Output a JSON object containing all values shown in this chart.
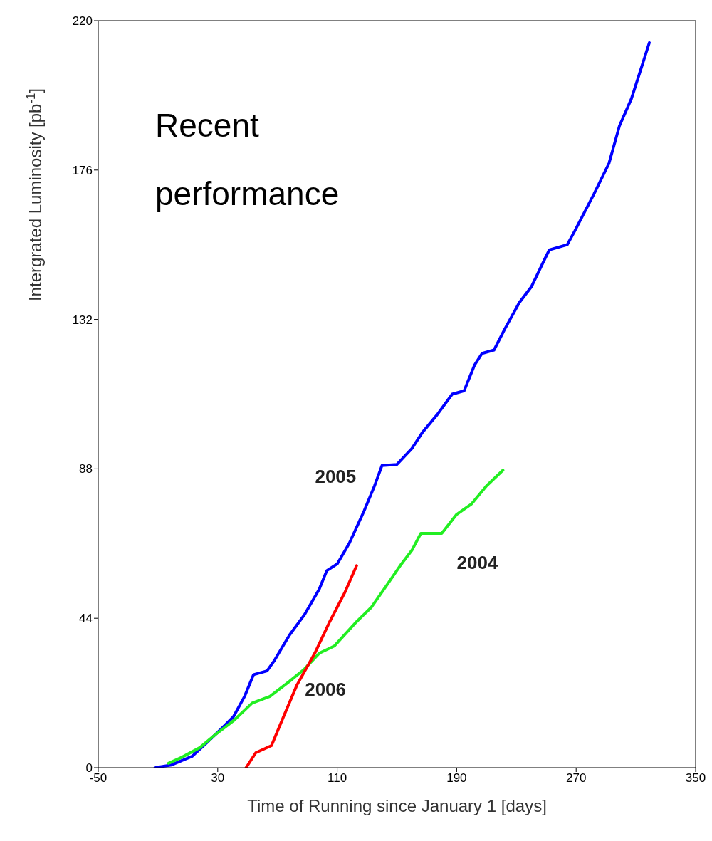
{
  "chart_data": {
    "type": "line",
    "title": "Recent performance",
    "xlabel": "Time of Running since January 1 [days]",
    "ylabel": "Intergrated Luminosity  [pb$^{-1}$]",
    "xlim": [
      -50,
      350
    ],
    "xticks": [
      -50,
      30,
      110,
      190,
      270,
      350
    ],
    "ylim": [
      0,
      220
    ],
    "yticks": [
      0,
      44,
      88,
      132,
      176,
      220
    ],
    "marker": "none",
    "line_style": "solid",
    "series": [
      {
        "name": "2005",
        "color": "#0000ff",
        "x": [
          -12,
          -1,
          13,
          23,
          33,
          40.5,
          48,
          54,
          63,
          68,
          78,
          88,
          98,
          103,
          110,
          118,
          128,
          135,
          140,
          150,
          160,
          167,
          177,
          187,
          195,
          202,
          207,
          215,
          222,
          232,
          240,
          247,
          252,
          264,
          269,
          282,
          292,
          299,
          307,
          314,
          319
        ],
        "values": [
          0,
          0.8,
          3.4,
          7.5,
          11.7,
          15,
          21,
          27.4,
          28.5,
          31.6,
          39,
          45,
          52.6,
          58,
          60,
          66,
          75.6,
          83,
          89,
          89.3,
          94,
          98.7,
          104,
          110,
          111,
          118.6,
          122,
          123,
          129,
          137,
          141.6,
          148,
          152.5,
          154,
          158,
          169,
          178,
          189,
          197,
          206.6,
          213.5
        ]
      },
      {
        "name": "2004",
        "color": "#22ee22",
        "x": [
          -3,
          5.7,
          18,
          28,
          40.5,
          53,
          65,
          78,
          88,
          98,
          108,
          123,
          133,
          143,
          153,
          160,
          166,
          180,
          190,
          200,
          210,
          221
        ],
        "values": [
          1.3,
          3,
          5.9,
          9.6,
          13.8,
          19,
          21,
          25.4,
          29,
          33.7,
          35.8,
          43,
          47.3,
          53.6,
          60,
          64,
          69,
          69,
          74.6,
          77.7,
          83,
          87.6
        ]
      },
      {
        "name": "2006",
        "color": "#ff0000",
        "x": [
          49,
          55.5,
          66,
          75,
          83,
          95,
          105,
          115,
          123
        ],
        "values": [
          0,
          4.4,
          6.5,
          16,
          24.3,
          33.7,
          43,
          51.5,
          59.5
        ]
      }
    ]
  }
}
